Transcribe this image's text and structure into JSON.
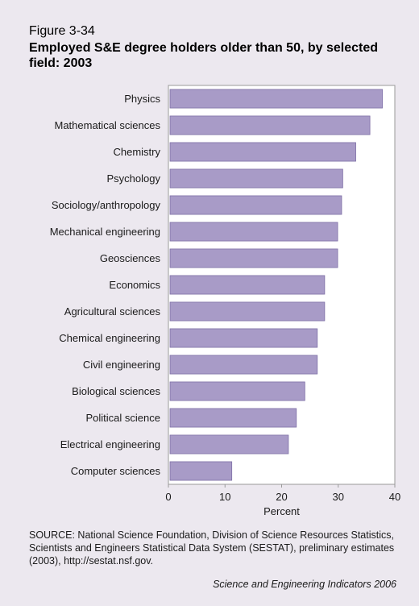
{
  "figure": {
    "number": "Figure 3-34",
    "title": "Employed S&E degree holders older than 50, by selected field: 2003",
    "source": "SOURCE: National Science Foundation, Division of Science Resources Statistics, Scientists and Engineers Statistical Data System (SESTAT), preliminary estimates (2003), http://sestat.nsf.gov.",
    "credit": "Science and Engineering Indicators 2006"
  },
  "colors": {
    "panel_background": "#ece8ef",
    "plot_background": "#ffffff",
    "bar_fill": "#a89bc7",
    "bar_stroke": "#7e6fa6"
  },
  "chart_data": {
    "type": "bar",
    "orientation": "horizontal",
    "categories": [
      "Physics",
      "Mathematical sciences",
      "Chemistry",
      "Psychology",
      "Sociology/anthropology",
      "Mechanical engineering",
      "Geosciences",
      "Economics",
      "Agricultural sciences",
      "Chemical engineering",
      "Civil engineering",
      "Biological sciences",
      "Political science",
      "Electrical engineering",
      "Computer sciences"
    ],
    "values": [
      37.8,
      35.6,
      33.1,
      30.8,
      30.6,
      29.9,
      29.9,
      27.6,
      27.6,
      26.3,
      26.3,
      24.1,
      22.6,
      21.2,
      11.2
    ],
    "xlabel": "Percent",
    "xlim": [
      0,
      40
    ],
    "xticks": [
      0,
      10,
      20,
      30,
      40
    ],
    "grid": false
  }
}
